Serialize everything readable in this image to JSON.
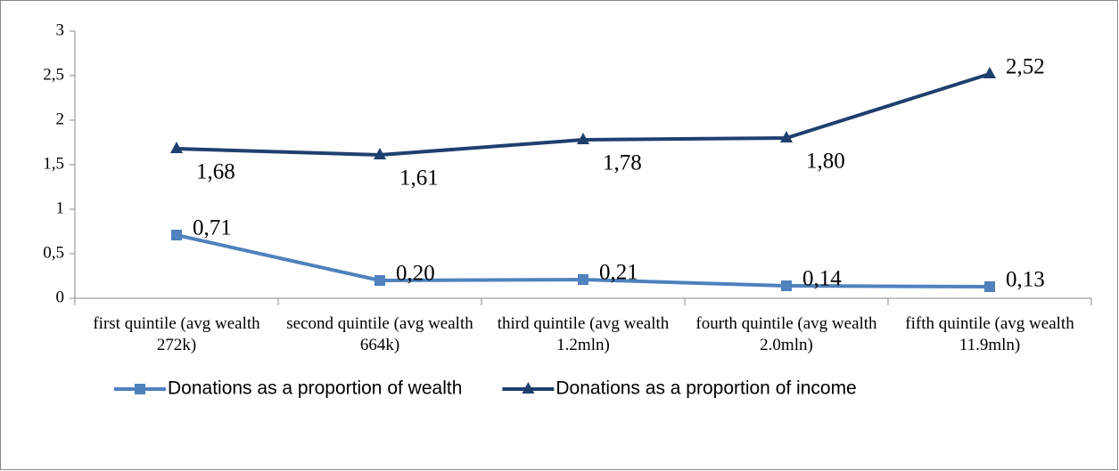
{
  "chart_data": {
    "type": "line",
    "categories": [
      "first quintile (avg wealth 272k)",
      "second quintile (avg wealth 664k)",
      "third quintile (avg wealth 1.2mln)",
      "fourth quintile (avg wealth 2.0mln)",
      "fifth quintile (avg wealth 11.9mln)"
    ],
    "series": [
      {
        "name": "Donations as a proportion of wealth",
        "color": "#4f81bd",
        "marker": "square",
        "values": [
          0.71,
          0.2,
          0.21,
          0.14,
          0.13
        ],
        "value_labels": [
          "0,71",
          "0,20",
          "0,21",
          "0,14",
          "0,13"
        ]
      },
      {
        "name": "Donations as a proportion of income",
        "color": "#1f3f6e",
        "marker": "triangle",
        "values": [
          1.68,
          1.61,
          1.78,
          1.8,
          2.52
        ],
        "value_labels": [
          "1,68",
          "1,61",
          "1,78",
          "1,80",
          "2,52"
        ]
      }
    ],
    "ylim": [
      0,
      3
    ],
    "yticks": [
      0,
      {
        "value": 0.5,
        "label": "0,5"
      },
      1,
      {
        "value": 1.5,
        "label": "1,5"
      },
      2,
      {
        "value": 2.5,
        "label": "2,5"
      },
      3
    ],
    "grid": false,
    "legend": "bottom"
  }
}
